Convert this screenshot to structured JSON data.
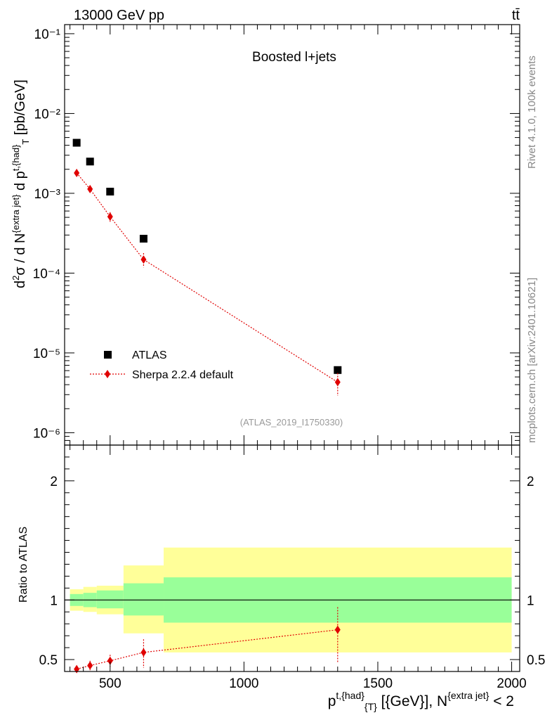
{
  "header": {
    "energy": "13000 GeV pp",
    "process": "tt̄"
  },
  "side_labels": {
    "rivet": "Rivet 4.1.0,  100k events",
    "mcplots": "mcplots.cern.ch [arXiv:2401.10621]"
  },
  "chart_data": [
    {
      "type": "scatter",
      "title": "Boosted l+jets",
      "analysis_label": "(ATLAS_2019_I1750330)",
      "ylabel": "d²σ / d N^{extra jet} d p^{t,{had}}_T [pb/GeV]",
      "yscale": "log",
      "ylim": [
        7e-07,
        0.13
      ],
      "xlim": [
        330,
        2030
      ],
      "ytick_labels": [
        "10⁻⁶",
        "10⁻⁵",
        "10⁻⁴",
        "10⁻³",
        "10⁻²",
        "10⁻¹"
      ],
      "x": [
        375,
        425,
        500,
        625,
        1350
      ],
      "series": [
        {
          "name": "ATLAS",
          "style": "black-square",
          "values": [
            0.0043,
            0.0025,
            0.00105,
            0.00027,
            6.1e-06
          ]
        },
        {
          "name": "Sherpa 2.2.4 default",
          "style": "red-diamond-dotted-line",
          "values": [
            0.0018,
            0.00113,
            0.00051,
            0.000148,
            4.3e-06
          ],
          "err_low": [
            0.0016,
            0.00101,
            0.00044,
            0.000118,
            2.9e-06
          ],
          "err_high": [
            0.002,
            0.00125,
            0.00058,
            0.000178,
            5.6e-06
          ]
        }
      ]
    },
    {
      "type": "scatter",
      "ylabel": "Ratio to ATLAS",
      "xlabel": "p^{t,{had}}_{T} [{GeV}], N^{extra jet} < 2",
      "ylim": [
        0.4,
        2.3
      ],
      "yticks": [
        0.5,
        1,
        2
      ],
      "ytick_labels": [
        "0.5",
        "1",
        "2"
      ],
      "xticks": [
        500,
        1000,
        1500,
        2000
      ],
      "xtick_labels": [
        "500",
        "1000",
        "1500",
        "2000"
      ],
      "bands": [
        {
          "x_low": 350,
          "x_high": 400,
          "stat_low": 0.95,
          "stat_high": 1.05,
          "tot_low": 0.91,
          "tot_high": 1.09
        },
        {
          "x_low": 400,
          "x_high": 450,
          "stat_low": 0.94,
          "stat_high": 1.06,
          "tot_low": 0.9,
          "tot_high": 1.11
        },
        {
          "x_low": 450,
          "x_high": 550,
          "stat_low": 0.93,
          "stat_high": 1.08,
          "tot_low": 0.88,
          "tot_high": 1.12
        },
        {
          "x_low": 550,
          "x_high": 700,
          "stat_low": 0.87,
          "stat_high": 1.14,
          "tot_low": 0.72,
          "tot_high": 1.29
        },
        {
          "x_low": 700,
          "x_high": 2000,
          "stat_low": 0.81,
          "stat_high": 1.19,
          "tot_low": 0.56,
          "tot_high": 1.44
        }
      ],
      "series": [
        {
          "name": "Sherpa 2.2.4 default / ATLAS",
          "x": [
            375,
            425,
            500,
            625,
            1350
          ],
          "values": [
            0.42,
            0.45,
            0.49,
            0.56,
            0.75
          ],
          "err_low": [
            0.39,
            0.41,
            0.44,
            0.43,
            0.48
          ],
          "err_high": [
            0.45,
            0.49,
            0.54,
            0.67,
            0.94
          ]
        }
      ]
    }
  ]
}
